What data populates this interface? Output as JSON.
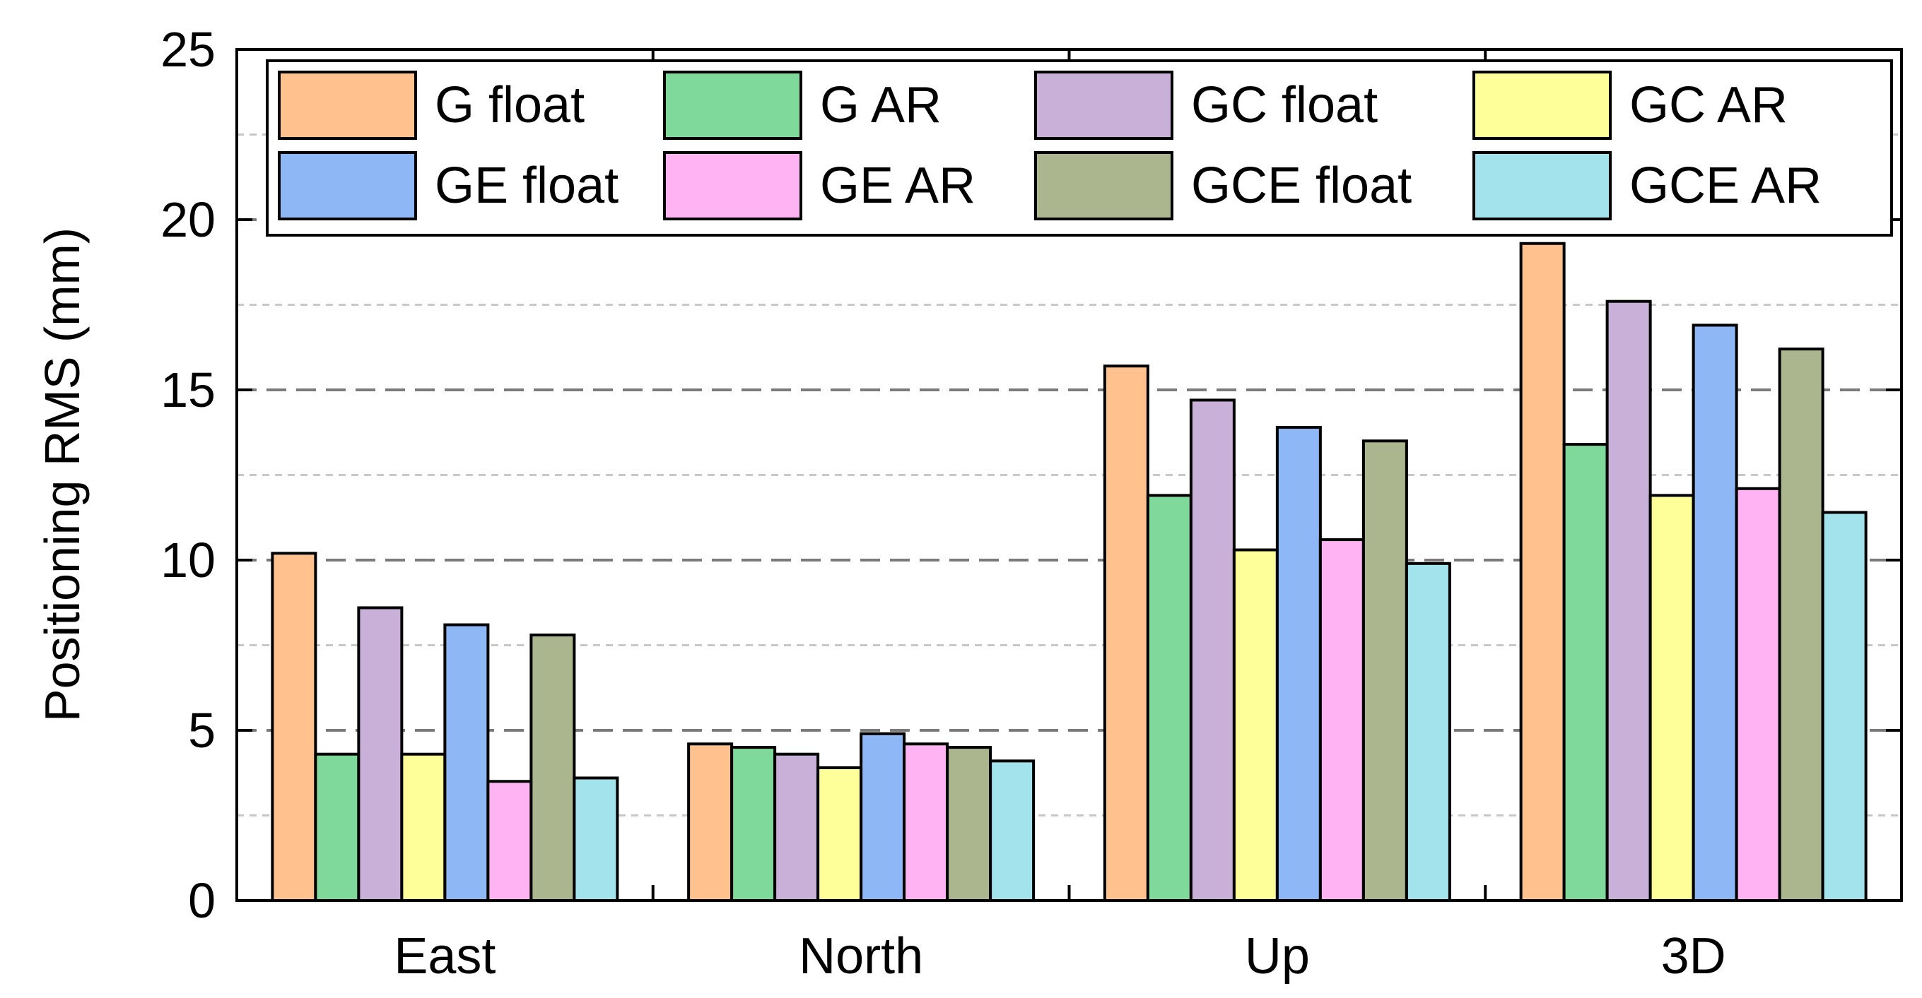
{
  "chart_data": {
    "type": "bar",
    "title": "",
    "xlabel": "",
    "ylabel": "Positioning RMS (mm)",
    "ylim": [
      0,
      25
    ],
    "yticks": [
      0,
      5,
      10,
      15,
      20,
      25
    ],
    "grid": "horizontal dashed",
    "legend_position": "top",
    "categories": [
      "East",
      "North",
      "Up",
      "3D"
    ],
    "series": [
      {
        "name": "G float",
        "color": "#FFC28E",
        "values": [
          10.2,
          4.6,
          15.7,
          19.3
        ]
      },
      {
        "name": "G AR",
        "color": "#7FD99A",
        "values": [
          4.3,
          4.5,
          11.9,
          13.4
        ]
      },
      {
        "name": "GC float",
        "color": "#C8B0D8",
        "values": [
          8.6,
          4.3,
          14.7,
          17.6
        ]
      },
      {
        "name": "GC AR",
        "color": "#FFFF99",
        "values": [
          4.3,
          3.9,
          10.3,
          11.9
        ]
      },
      {
        "name": "GE float",
        "color": "#8DB7F5",
        "values": [
          8.1,
          4.9,
          13.9,
          16.9
        ]
      },
      {
        "name": "GE AR",
        "color": "#FFB3F3",
        "values": [
          3.5,
          4.6,
          10.6,
          12.1
        ]
      },
      {
        "name": "GCE float",
        "color": "#ABB68E",
        "values": [
          7.8,
          4.5,
          13.5,
          16.2
        ]
      },
      {
        "name": "GCE AR",
        "color": "#A3E4EC",
        "values": [
          3.6,
          4.1,
          9.9,
          11.4
        ]
      }
    ]
  }
}
